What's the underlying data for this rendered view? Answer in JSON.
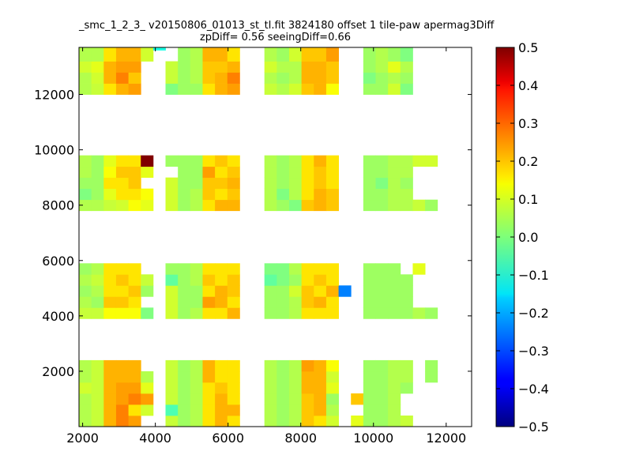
{
  "chart_data": {
    "type": "heatmap",
    "title_line1": "_smc_1_2_3_ v20150806_01013_st_tl.fit 3824180 offset 1 tile-paw apermag3Diff",
    "title_line2": "zpDiff= 0.56 seeingDiff=0.66",
    "xlabel": "",
    "ylabel": "",
    "xlim": [
      1900,
      12700
    ],
    "ylim": [
      0,
      13700
    ],
    "xticks": [
      2000,
      4000,
      6000,
      8000,
      10000,
      12000
    ],
    "yticks": [
      2000,
      4000,
      6000,
      8000,
      10000,
      12000
    ],
    "colorbar": {
      "min": -0.5,
      "max": 0.5,
      "ticks": [
        0.5,
        0.4,
        0.3,
        0.2,
        0.1,
        0.0,
        -0.1,
        -0.2,
        -0.3,
        -0.4,
        -0.5
      ],
      "tick_labels": [
        "0.5",
        "0.4",
        "0.3",
        "0.2",
        "0.1",
        "0.0",
        "−0.1",
        "−0.2",
        "−0.3",
        "−0.4",
        "−0.5"
      ],
      "colormap": "jet"
    },
    "cell_size": [
      340,
      400
    ],
    "x_origin": 1900,
    "y_origin": 0,
    "rows": [
      {
        "y0": 12000,
        "values": [
          0.05,
          0.07,
          0.15,
          0.2,
          0.22,
          null,
          null,
          0.0,
          0.03,
          0.03,
          0.15,
          0.2,
          0.22,
          null,
          null,
          0.07,
          0.05,
          0.08,
          0.18,
          0.2,
          0.12,
          null,
          null,
          0.03,
          0.03,
          0.08,
          0.0,
          null,
          null
        ]
      },
      {
        "y0": 12400,
        "values": [
          0.05,
          0.08,
          0.2,
          0.25,
          0.18,
          null,
          null,
          0.07,
          0.03,
          0.05,
          0.18,
          0.2,
          0.25,
          null,
          null,
          0.05,
          0.03,
          0.05,
          0.2,
          0.2,
          0.18,
          null,
          null,
          0.0,
          0.03,
          0.05,
          0.03,
          null,
          null
        ]
      },
      {
        "y0": 12800,
        "values": [
          0.08,
          0.1,
          0.2,
          0.22,
          0.22,
          null,
          null,
          0.07,
          0.03,
          0.05,
          0.18,
          0.18,
          0.2,
          null,
          null,
          0.08,
          0.05,
          0.05,
          0.2,
          0.2,
          0.18,
          null,
          null,
          0.03,
          0.05,
          0.1,
          0.05,
          null,
          null
        ]
      },
      {
        "y0": 13200,
        "values": [
          0.05,
          0.05,
          0.15,
          0.2,
          0.2,
          0.08,
          null,
          null,
          0.03,
          0.05,
          0.2,
          0.2,
          0.15,
          null,
          null,
          0.05,
          0.03,
          0.08,
          0.18,
          0.18,
          0.22,
          null,
          null,
          0.03,
          0.05,
          0.03,
          0.0,
          null,
          null
        ]
      },
      {
        "y0": 13600,
        "values": [
          0.05,
          0.05,
          0.15,
          0.2,
          0.2,
          0.08,
          -0.1,
          null,
          0.03,
          0.05,
          0.2,
          0.2,
          0.15,
          null,
          null,
          0.05,
          0.03,
          0.08,
          0.18,
          0.18,
          0.22,
          null,
          null,
          0.03,
          0.05,
          0.03,
          0.0,
          null,
          null
        ]
      },
      {
        "y0": 7800,
        "values": [
          0.05,
          0.05,
          0.07,
          0.08,
          0.12,
          0.1,
          null,
          0.08,
          0.03,
          0.05,
          0.15,
          0.2,
          0.2,
          null,
          null,
          0.05,
          0.03,
          0.0,
          0.18,
          0.2,
          0.18,
          null,
          null,
          0.03,
          0.03,
          0.05,
          0.05,
          0.07,
          0.03
        ]
      },
      {
        "y0": 8200,
        "values": [
          0.0,
          0.03,
          0.1,
          0.15,
          0.15,
          0.12,
          null,
          0.08,
          0.03,
          0.05,
          0.18,
          0.15,
          0.18,
          null,
          null,
          0.05,
          0.0,
          0.05,
          0.15,
          0.2,
          0.18,
          null,
          null,
          0.03,
          0.03,
          0.05,
          0.05,
          null,
          null
        ]
      },
      {
        "y0": 8600,
        "values": [
          0.03,
          0.03,
          0.15,
          0.15,
          0.18,
          null,
          null,
          0.08,
          0.03,
          0.03,
          0.18,
          0.18,
          0.2,
          null,
          null,
          0.05,
          0.03,
          0.05,
          0.15,
          0.18,
          0.15,
          null,
          null,
          0.03,
          0.0,
          0.05,
          0.03,
          null,
          null
        ]
      },
      {
        "y0": 9000,
        "values": [
          0.05,
          0.03,
          0.12,
          0.18,
          0.18,
          0.1,
          null,
          null,
          0.03,
          0.03,
          0.22,
          0.15,
          0.18,
          null,
          null,
          0.05,
          0.03,
          0.05,
          0.15,
          0.18,
          0.15,
          null,
          null,
          0.03,
          0.03,
          0.05,
          0.05,
          null,
          null
        ]
      },
      {
        "y0": 9400,
        "values": [
          0.05,
          0.03,
          0.1,
          0.15,
          0.15,
          0.5,
          null,
          0.03,
          0.03,
          0.03,
          0.15,
          0.18,
          0.15,
          null,
          null,
          0.05,
          0.03,
          0.05,
          0.15,
          0.2,
          0.15,
          null,
          null,
          0.03,
          0.03,
          0.05,
          0.05,
          0.08,
          0.08
        ]
      },
      {
        "y0": 3900,
        "values": [
          0.07,
          0.07,
          0.12,
          0.12,
          0.12,
          0.0,
          null,
          0.08,
          0.03,
          0.05,
          0.15,
          0.15,
          0.2,
          null,
          null,
          0.03,
          0.03,
          0.05,
          0.15,
          0.15,
          0.15,
          null,
          null,
          0.03,
          0.03,
          0.03,
          0.03,
          0.05,
          0.03
        ]
      },
      {
        "y0": 4300,
        "values": [
          0.05,
          0.03,
          0.18,
          0.18,
          0.15,
          null,
          null,
          0.08,
          0.03,
          0.03,
          0.22,
          0.2,
          0.15,
          null,
          null,
          0.03,
          0.03,
          0.05,
          0.18,
          0.2,
          0.15,
          null,
          null,
          0.03,
          0.03,
          0.03,
          0.03,
          null,
          null
        ]
      },
      {
        "y0": 4700,
        "values": [
          0.03,
          0.05,
          0.15,
          0.15,
          0.18,
          0.03,
          null,
          0.08,
          0.03,
          0.03,
          0.15,
          0.2,
          0.18,
          null,
          null,
          0.03,
          0.03,
          0.08,
          0.18,
          0.15,
          0.2,
          -0.25,
          null,
          0.03,
          0.03,
          0.03,
          0.03,
          null,
          null
        ]
      },
      {
        "y0": 5100,
        "values": [
          0.05,
          0.07,
          0.15,
          0.18,
          0.15,
          0.07,
          null,
          -0.03,
          0.03,
          0.05,
          0.18,
          0.15,
          0.18,
          null,
          null,
          -0.03,
          0.0,
          0.03,
          0.15,
          0.18,
          0.15,
          null,
          null,
          0.03,
          0.03,
          0.03,
          0.03,
          null,
          null
        ]
      },
      {
        "y0": 5500,
        "values": [
          0.03,
          0.05,
          0.15,
          0.15,
          0.15,
          null,
          null,
          0.03,
          0.03,
          0.05,
          0.15,
          0.15,
          0.15,
          null,
          null,
          0.0,
          0.0,
          0.05,
          0.15,
          0.15,
          0.15,
          null,
          null,
          0.03,
          0.03,
          0.03,
          null,
          0.1,
          null
        ]
      },
      {
        "y0": 0,
        "values": [
          0.05,
          0.07,
          0.2,
          0.25,
          0.22,
          null,
          null,
          0.07,
          0.03,
          0.05,
          0.15,
          0.2,
          0.15,
          null,
          null,
          0.05,
          0.03,
          0.05,
          0.18,
          0.15,
          0.08,
          null,
          0.1,
          0.03,
          0.03,
          0.05,
          0.07,
          null,
          null
        ]
      },
      {
        "y0": 400,
        "values": [
          0.05,
          0.07,
          0.2,
          0.25,
          0.15,
          0.08,
          null,
          -0.05,
          0.03,
          0.05,
          0.15,
          0.2,
          0.2,
          null,
          null,
          0.05,
          0.03,
          0.05,
          0.18,
          0.2,
          0.05,
          null,
          null,
          0.03,
          0.03,
          0.05,
          null,
          null,
          null
        ]
      },
      {
        "y0": 800,
        "values": [
          0.05,
          0.07,
          0.2,
          0.22,
          0.25,
          0.22,
          null,
          0.07,
          0.03,
          0.05,
          0.15,
          0.2,
          0.15,
          null,
          null,
          0.05,
          0.03,
          0.05,
          0.18,
          0.2,
          0.03,
          null,
          0.18,
          0.03,
          0.03,
          0.05,
          null,
          null,
          null
        ]
      },
      {
        "y0": 1200,
        "values": [
          0.08,
          0.07,
          0.2,
          0.22,
          0.22,
          0.1,
          null,
          0.07,
          0.03,
          0.05,
          0.15,
          0.18,
          0.15,
          null,
          null,
          0.05,
          0.03,
          0.05,
          0.2,
          0.2,
          0.1,
          null,
          null,
          0.03,
          0.03,
          0.05,
          0.03,
          null,
          null
        ]
      },
      {
        "y0": 1600,
        "values": [
          0.05,
          0.07,
          0.2,
          0.2,
          0.2,
          0.05,
          null,
          0.07,
          0.03,
          0.05,
          0.2,
          0.15,
          0.15,
          null,
          null,
          0.05,
          0.03,
          0.05,
          0.2,
          0.2,
          0.08,
          null,
          null,
          0.03,
          0.03,
          0.05,
          0.05,
          null,
          0.03
        ]
      },
      {
        "y0": 2000,
        "values": [
          0.05,
          0.07,
          0.2,
          0.2,
          0.2,
          null,
          null,
          0.07,
          0.03,
          0.05,
          0.2,
          0.15,
          0.15,
          null,
          null,
          0.05,
          0.03,
          0.05,
          0.22,
          0.2,
          0.12,
          null,
          null,
          0.03,
          0.03,
          0.05,
          0.05,
          null,
          0.03
        ]
      }
    ]
  }
}
